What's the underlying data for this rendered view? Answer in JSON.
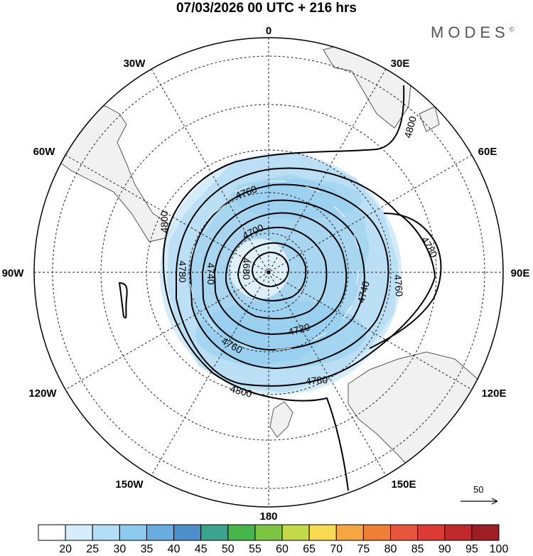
{
  "title": "07/03/2026  00 UTC  + 216 hrs",
  "brand": {
    "name": "MODES",
    "mark": "©"
  },
  "longitude_labels": {
    "lon_0": "0",
    "lon_30E": "30E",
    "lon_60E": "60E",
    "lon_90E": "90E",
    "lon_120E": "120E",
    "lon_150E": "150E",
    "lon_180": "180",
    "lon_150W": "150W",
    "lon_120W": "120W",
    "lon_90W": "90W",
    "lon_60W": "60W",
    "lon_30W": "30W"
  },
  "contour_labels": {
    "c4800_ne": "4800",
    "c4780_e": "4780",
    "c4760_e": "4760",
    "c4740_e": "4740",
    "c4760_n": "4760",
    "c4700": "4700",
    "c4680": "4680",
    "c4800_w": "4800",
    "c4780_w": "4780",
    "c4740_w": "4740",
    "c4720": "4720",
    "c4760_s": "4760",
    "c4780_s": "4780",
    "c4800_s": "4800"
  },
  "reference_vector": {
    "label": "50"
  },
  "colorbar": {
    "labels": [
      "20",
      "25",
      "30",
      "35",
      "40",
      "45",
      "50",
      "55",
      "60",
      "65",
      "70",
      "75",
      "80",
      "85",
      "90",
      "95",
      "100"
    ],
    "colors": [
      "#ffffff",
      "#d6eefb",
      "#b4def5",
      "#8ccaee",
      "#68ace0",
      "#4d8fca",
      "#3aa58c",
      "#46b54c",
      "#7ec443",
      "#c3d94a",
      "#f7dc52",
      "#f4a741",
      "#ee7f35",
      "#e5563a",
      "#dc3a34",
      "#c02a2d",
      "#9f1e26"
    ]
  }
}
